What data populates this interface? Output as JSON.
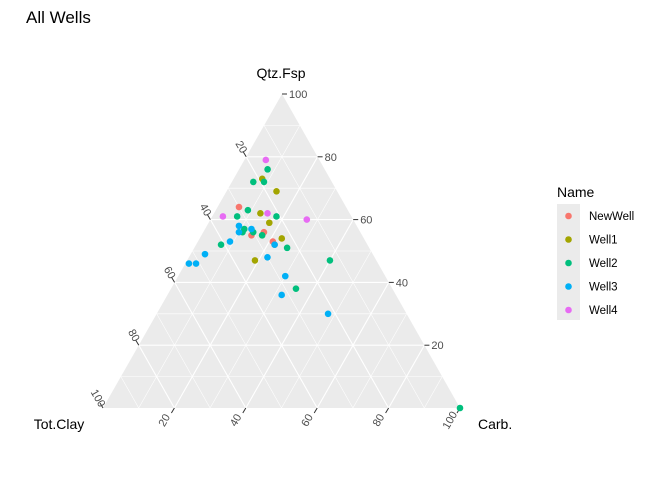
{
  "chart_data": {
    "type": "scatter",
    "subtype": "ternary",
    "title": "All Wells",
    "axes": {
      "top": "Qtz.Fsp",
      "left": "Tot.Clay",
      "right": "Carb."
    },
    "ticks": [
      "20",
      "40",
      "60",
      "80",
      "100"
    ],
    "range": [
      0,
      100
    ],
    "grid": true,
    "legend": {
      "title": "Name",
      "position": "right"
    },
    "series": [
      {
        "name": "NewWell",
        "color": "#F8766D",
        "points": [
          {
            "qtz": 64,
            "clay": 30,
            "carb": 6
          },
          {
            "qtz": 55,
            "clay": 31,
            "carb": 14
          },
          {
            "qtz": 56,
            "clay": 27,
            "carb": 17
          },
          {
            "qtz": 53,
            "clay": 26,
            "carb": 21
          },
          {
            "qtz": 52,
            "clay": 26,
            "carb": 22
          }
        ]
      },
      {
        "name": "Well1",
        "color": "#A3A500",
        "points": [
          {
            "qtz": 73,
            "clay": 19,
            "carb": 8
          },
          {
            "qtz": 69,
            "clay": 17,
            "carb": 14
          },
          {
            "qtz": 62,
            "clay": 25,
            "carb": 13
          },
          {
            "qtz": 59,
            "clay": 24,
            "carb": 17
          },
          {
            "qtz": 55,
            "clay": 28,
            "carb": 17
          },
          {
            "qtz": 54,
            "clay": 23,
            "carb": 23
          },
          {
            "qtz": 47,
            "clay": 34,
            "carb": 19
          }
        ]
      },
      {
        "name": "Well2",
        "color": "#00BF7D",
        "points": [
          {
            "qtz": 76,
            "clay": 16,
            "carb": 8
          },
          {
            "qtz": 72,
            "clay": 22,
            "carb": 6
          },
          {
            "qtz": 72,
            "clay": 19,
            "carb": 9
          },
          {
            "qtz": 63,
            "clay": 28,
            "carb": 9
          },
          {
            "qtz": 61,
            "clay": 32,
            "carb": 7
          },
          {
            "qtz": 61,
            "clay": 21,
            "carb": 18
          },
          {
            "qtz": 57,
            "clay": 32,
            "carb": 11
          },
          {
            "qtz": 56,
            "clay": 33,
            "carb": 11
          },
          {
            "qtz": 56,
            "clay": 30,
            "carb": 14
          },
          {
            "qtz": 55,
            "clay": 28,
            "carb": 17
          },
          {
            "qtz": 52,
            "clay": 41,
            "carb": 7
          },
          {
            "qtz": 51,
            "clay": 23,
            "carb": 26
          },
          {
            "qtz": 47,
            "clay": 13,
            "carb": 40
          },
          {
            "qtz": 38,
            "clay": 27,
            "carb": 35
          },
          {
            "qtz": 0,
            "clay": 0,
            "carb": 100
          }
        ]
      },
      {
        "name": "Well3",
        "color": "#00B0F6",
        "points": [
          {
            "qtz": 58,
            "clay": 33,
            "carb": 9
          },
          {
            "qtz": 57,
            "clay": 30,
            "carb": 13
          },
          {
            "qtz": 56,
            "clay": 34,
            "carb": 10
          },
          {
            "qtz": 53,
            "clay": 38,
            "carb": 9
          },
          {
            "qtz": 52,
            "clay": 26,
            "carb": 22
          },
          {
            "qtz": 49,
            "clay": 47,
            "carb": 4
          },
          {
            "qtz": 46,
            "clay": 53,
            "carb": 1
          },
          {
            "qtz": 46,
            "clay": 51,
            "carb": 3
          },
          {
            "qtz": 48,
            "clay": 30,
            "carb": 22
          },
          {
            "qtz": 42,
            "clay": 28,
            "carb": 30
          },
          {
            "qtz": 36,
            "clay": 32,
            "carb": 32
          },
          {
            "qtz": 30,
            "clay": 22,
            "carb": 48
          }
        ]
      },
      {
        "name": "Well4",
        "color": "#E76BF3",
        "points": [
          {
            "qtz": 79,
            "clay": 15,
            "carb": 6
          },
          {
            "qtz": 61,
            "clay": 36,
            "carb": 3
          },
          {
            "qtz": 62,
            "clay": 23,
            "carb": 15
          },
          {
            "qtz": 60,
            "clay": 13,
            "carb": 27
          }
        ]
      }
    ]
  }
}
